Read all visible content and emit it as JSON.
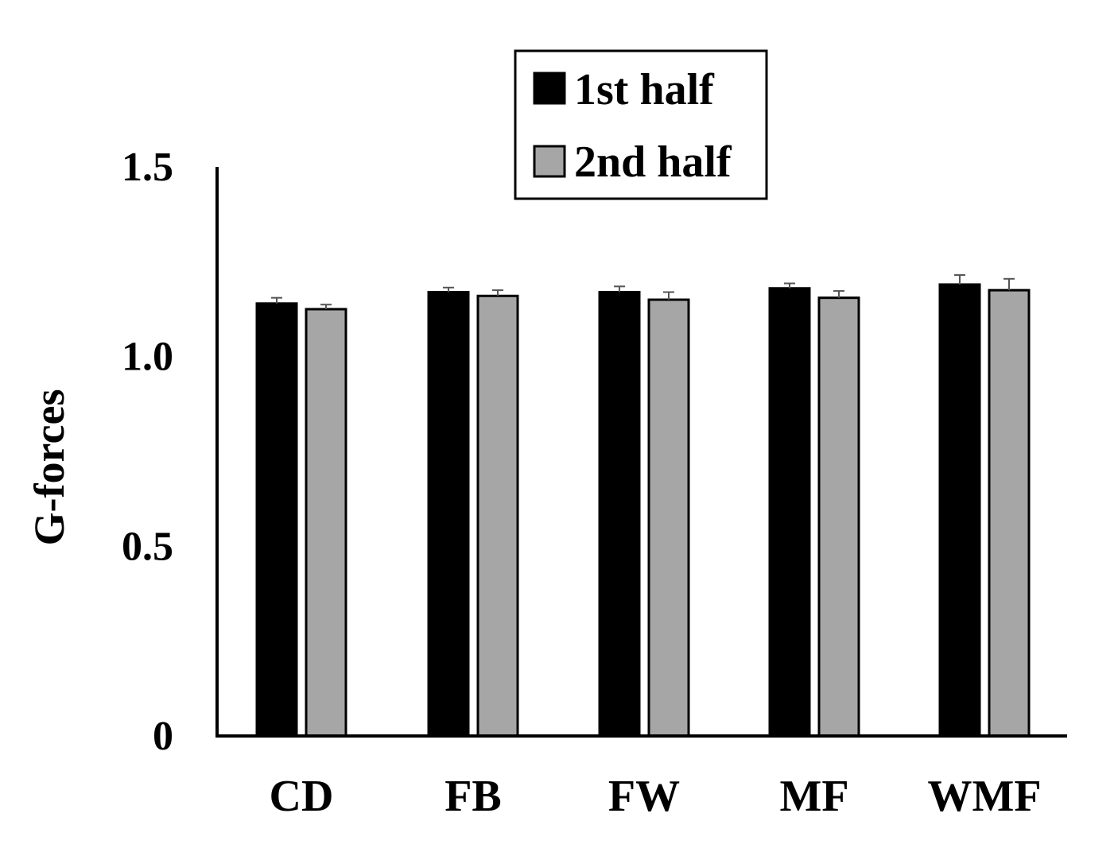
{
  "chart_data": {
    "type": "bar",
    "title": "",
    "xlabel": "",
    "ylabel": "G-forces",
    "ylim": [
      0,
      1.5
    ],
    "yticks": [
      {
        "value": 0,
        "label": "0"
      },
      {
        "value": 0.5,
        "label": "0.5"
      },
      {
        "value": 1.0,
        "label": "1.0"
      },
      {
        "value": 1.5,
        "label": "1.5"
      }
    ],
    "grid": false,
    "legend_position": "top-right",
    "categories": [
      "CD",
      "FB",
      "FW",
      "MF",
      "WMF"
    ],
    "series": [
      {
        "name": "1st half",
        "color": "#000000",
        "values": [
          1.14,
          1.17,
          1.17,
          1.18,
          1.19
        ],
        "errors": [
          0.015,
          0.012,
          0.015,
          0.013,
          0.025
        ]
      },
      {
        "name": "2nd half",
        "color": "#a6a6a6",
        "values": [
          1.125,
          1.16,
          1.15,
          1.155,
          1.175
        ],
        "errors": [
          0.012,
          0.015,
          0.02,
          0.018,
          0.03
        ]
      }
    ]
  }
}
